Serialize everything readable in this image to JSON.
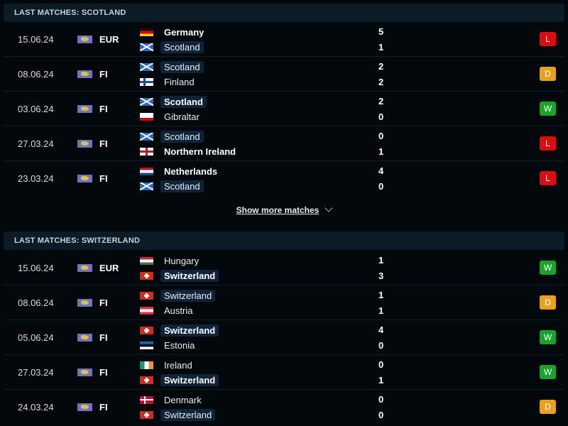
{
  "sections": [
    {
      "title": "LAST MATCHES: SCOTLAND",
      "matches": [
        {
          "date": "15.06.24",
          "comp": "EUR",
          "home": {
            "name": "Germany",
            "flag": "germany",
            "score": "5",
            "bold": true,
            "highlight": false
          },
          "away": {
            "name": "Scotland",
            "flag": "scotland",
            "score": "1",
            "bold": false,
            "highlight": true
          },
          "result": "L"
        },
        {
          "date": "08.06.24",
          "comp": "FI",
          "home": {
            "name": "Scotland",
            "flag": "scotland",
            "score": "2",
            "bold": false,
            "highlight": true
          },
          "away": {
            "name": "Finland",
            "flag": "finland",
            "score": "2",
            "bold": false,
            "highlight": false
          },
          "result": "D"
        },
        {
          "date": "03.06.24",
          "comp": "FI",
          "home": {
            "name": "Scotland",
            "flag": "scotland",
            "score": "2",
            "bold": true,
            "highlight": true
          },
          "away": {
            "name": "Gibraltar",
            "flag": "gibraltar",
            "score": "0",
            "bold": false,
            "highlight": false
          },
          "result": "W"
        },
        {
          "date": "27.03.24",
          "comp": "FI",
          "home": {
            "name": "Scotland",
            "flag": "scotland",
            "score": "0",
            "bold": false,
            "highlight": true
          },
          "away": {
            "name": "Northern Ireland",
            "flag": "nireland",
            "score": "1",
            "bold": true,
            "highlight": false
          },
          "result": "L"
        },
        {
          "date": "23.03.24",
          "comp": "FI",
          "home": {
            "name": "Netherlands",
            "flag": "netherlands",
            "score": "4",
            "bold": true,
            "highlight": false
          },
          "away": {
            "name": "Scotland",
            "flag": "scotland",
            "score": "0",
            "bold": false,
            "highlight": true
          },
          "result": "L"
        }
      ]
    },
    {
      "title": "LAST MATCHES: SWITZERLAND",
      "matches": [
        {
          "date": "15.06.24",
          "comp": "EUR",
          "home": {
            "name": "Hungary",
            "flag": "hungary",
            "score": "1",
            "bold": false,
            "highlight": false
          },
          "away": {
            "name": "Switzerland",
            "flag": "switzerland",
            "score": "3",
            "bold": true,
            "highlight": true
          },
          "result": "W"
        },
        {
          "date": "08.06.24",
          "comp": "FI",
          "home": {
            "name": "Switzerland",
            "flag": "switzerland",
            "score": "1",
            "bold": false,
            "highlight": true
          },
          "away": {
            "name": "Austria",
            "flag": "austria",
            "score": "1",
            "bold": false,
            "highlight": false
          },
          "result": "D"
        },
        {
          "date": "05.06.24",
          "comp": "FI",
          "home": {
            "name": "Switzerland",
            "flag": "switzerland",
            "score": "4",
            "bold": true,
            "highlight": true
          },
          "away": {
            "name": "Estonia",
            "flag": "estonia",
            "score": "0",
            "bold": false,
            "highlight": false
          },
          "result": "W"
        },
        {
          "date": "27.03.24",
          "comp": "FI",
          "home": {
            "name": "Ireland",
            "flag": "ireland",
            "score": "0",
            "bold": false,
            "highlight": false
          },
          "away": {
            "name": "Switzerland",
            "flag": "switzerland",
            "score": "1",
            "bold": true,
            "highlight": true
          },
          "result": "W"
        },
        {
          "date": "24.03.24",
          "comp": "FI",
          "home": {
            "name": "Denmark",
            "flag": "denmark",
            "score": "0",
            "bold": false,
            "highlight": false
          },
          "away": {
            "name": "Switzerland",
            "flag": "switzerland",
            "score": "0",
            "bold": false,
            "highlight": true
          },
          "result": "D"
        }
      ]
    }
  ],
  "show_more_label": "Show more matches",
  "colors": {
    "loss": "#d80f0f",
    "draw": "#e9a11c",
    "win": "#18a32d",
    "header_bg": "#0b1c26",
    "background": "#03080d"
  }
}
